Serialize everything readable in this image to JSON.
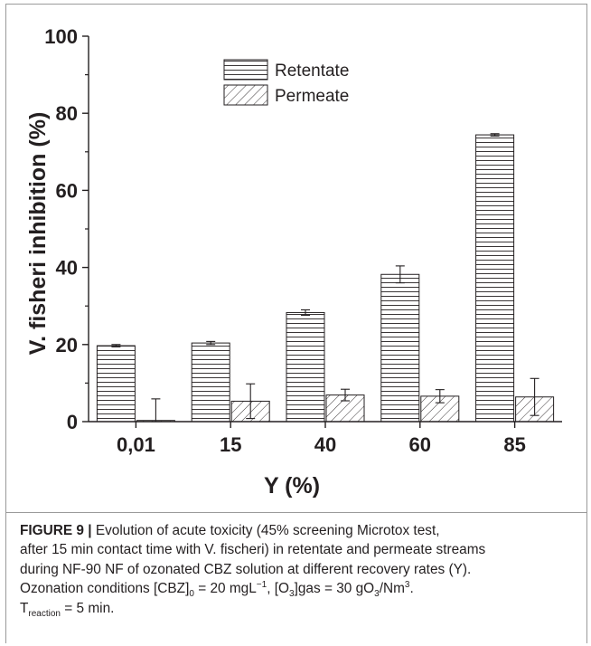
{
  "chart_data": {
    "type": "bar",
    "categories": [
      "0,01",
      "15",
      "40",
      "60",
      "85"
    ],
    "series": [
      {
        "name": "Retentate",
        "values": [
          19.7,
          20.4,
          28.3,
          38.2,
          74.4
        ],
        "errors": [
          0.3,
          0.4,
          0.7,
          2.2,
          0.3
        ],
        "pattern": "horizontal-lines"
      },
      {
        "name": "Permeate",
        "values": [
          0.3,
          5.3,
          6.9,
          6.6,
          6.4
        ],
        "errors": [
          5.6,
          4.5,
          1.5,
          1.7,
          4.8
        ],
        "pattern": "diagonal-hatch"
      }
    ],
    "xlabel": "Y (%)",
    "ylabel": "V. fisheri inhibition (%)",
    "ylim": [
      0,
      100
    ],
    "yticks": [
      "0",
      "20",
      "40",
      "60",
      "80",
      "100"
    ],
    "grid": false,
    "legend_position": "top-center"
  },
  "caption": {
    "label": "FIGURE 9 |",
    "line1": " Evolution of acute toxicity (45% screening Microtox test,",
    "line2": "after 15 min contact time with V. fischeri) in retentate and permeate streams",
    "line3": "during NF-90 NF of ozonated CBZ solution at different recovery rates (Y).",
    "line4a": "Ozonation conditions [CBZ]",
    "line4b": "0",
    "line4c": " = 20 mgL",
    "line4d": "−1",
    "line4e": ", [O",
    "line4f": "3",
    "line4g": "]gas = 30 gO",
    "line4h": "3",
    "line4i": "/Nm",
    "line4j": "3",
    "line4k": ".",
    "line5a": "T",
    "line5b": "reaction",
    "line5c": " = 5 min."
  },
  "colors": {
    "ink": "#231f20",
    "frame": "#9a9a9a",
    "fill": "#ffffff"
  }
}
